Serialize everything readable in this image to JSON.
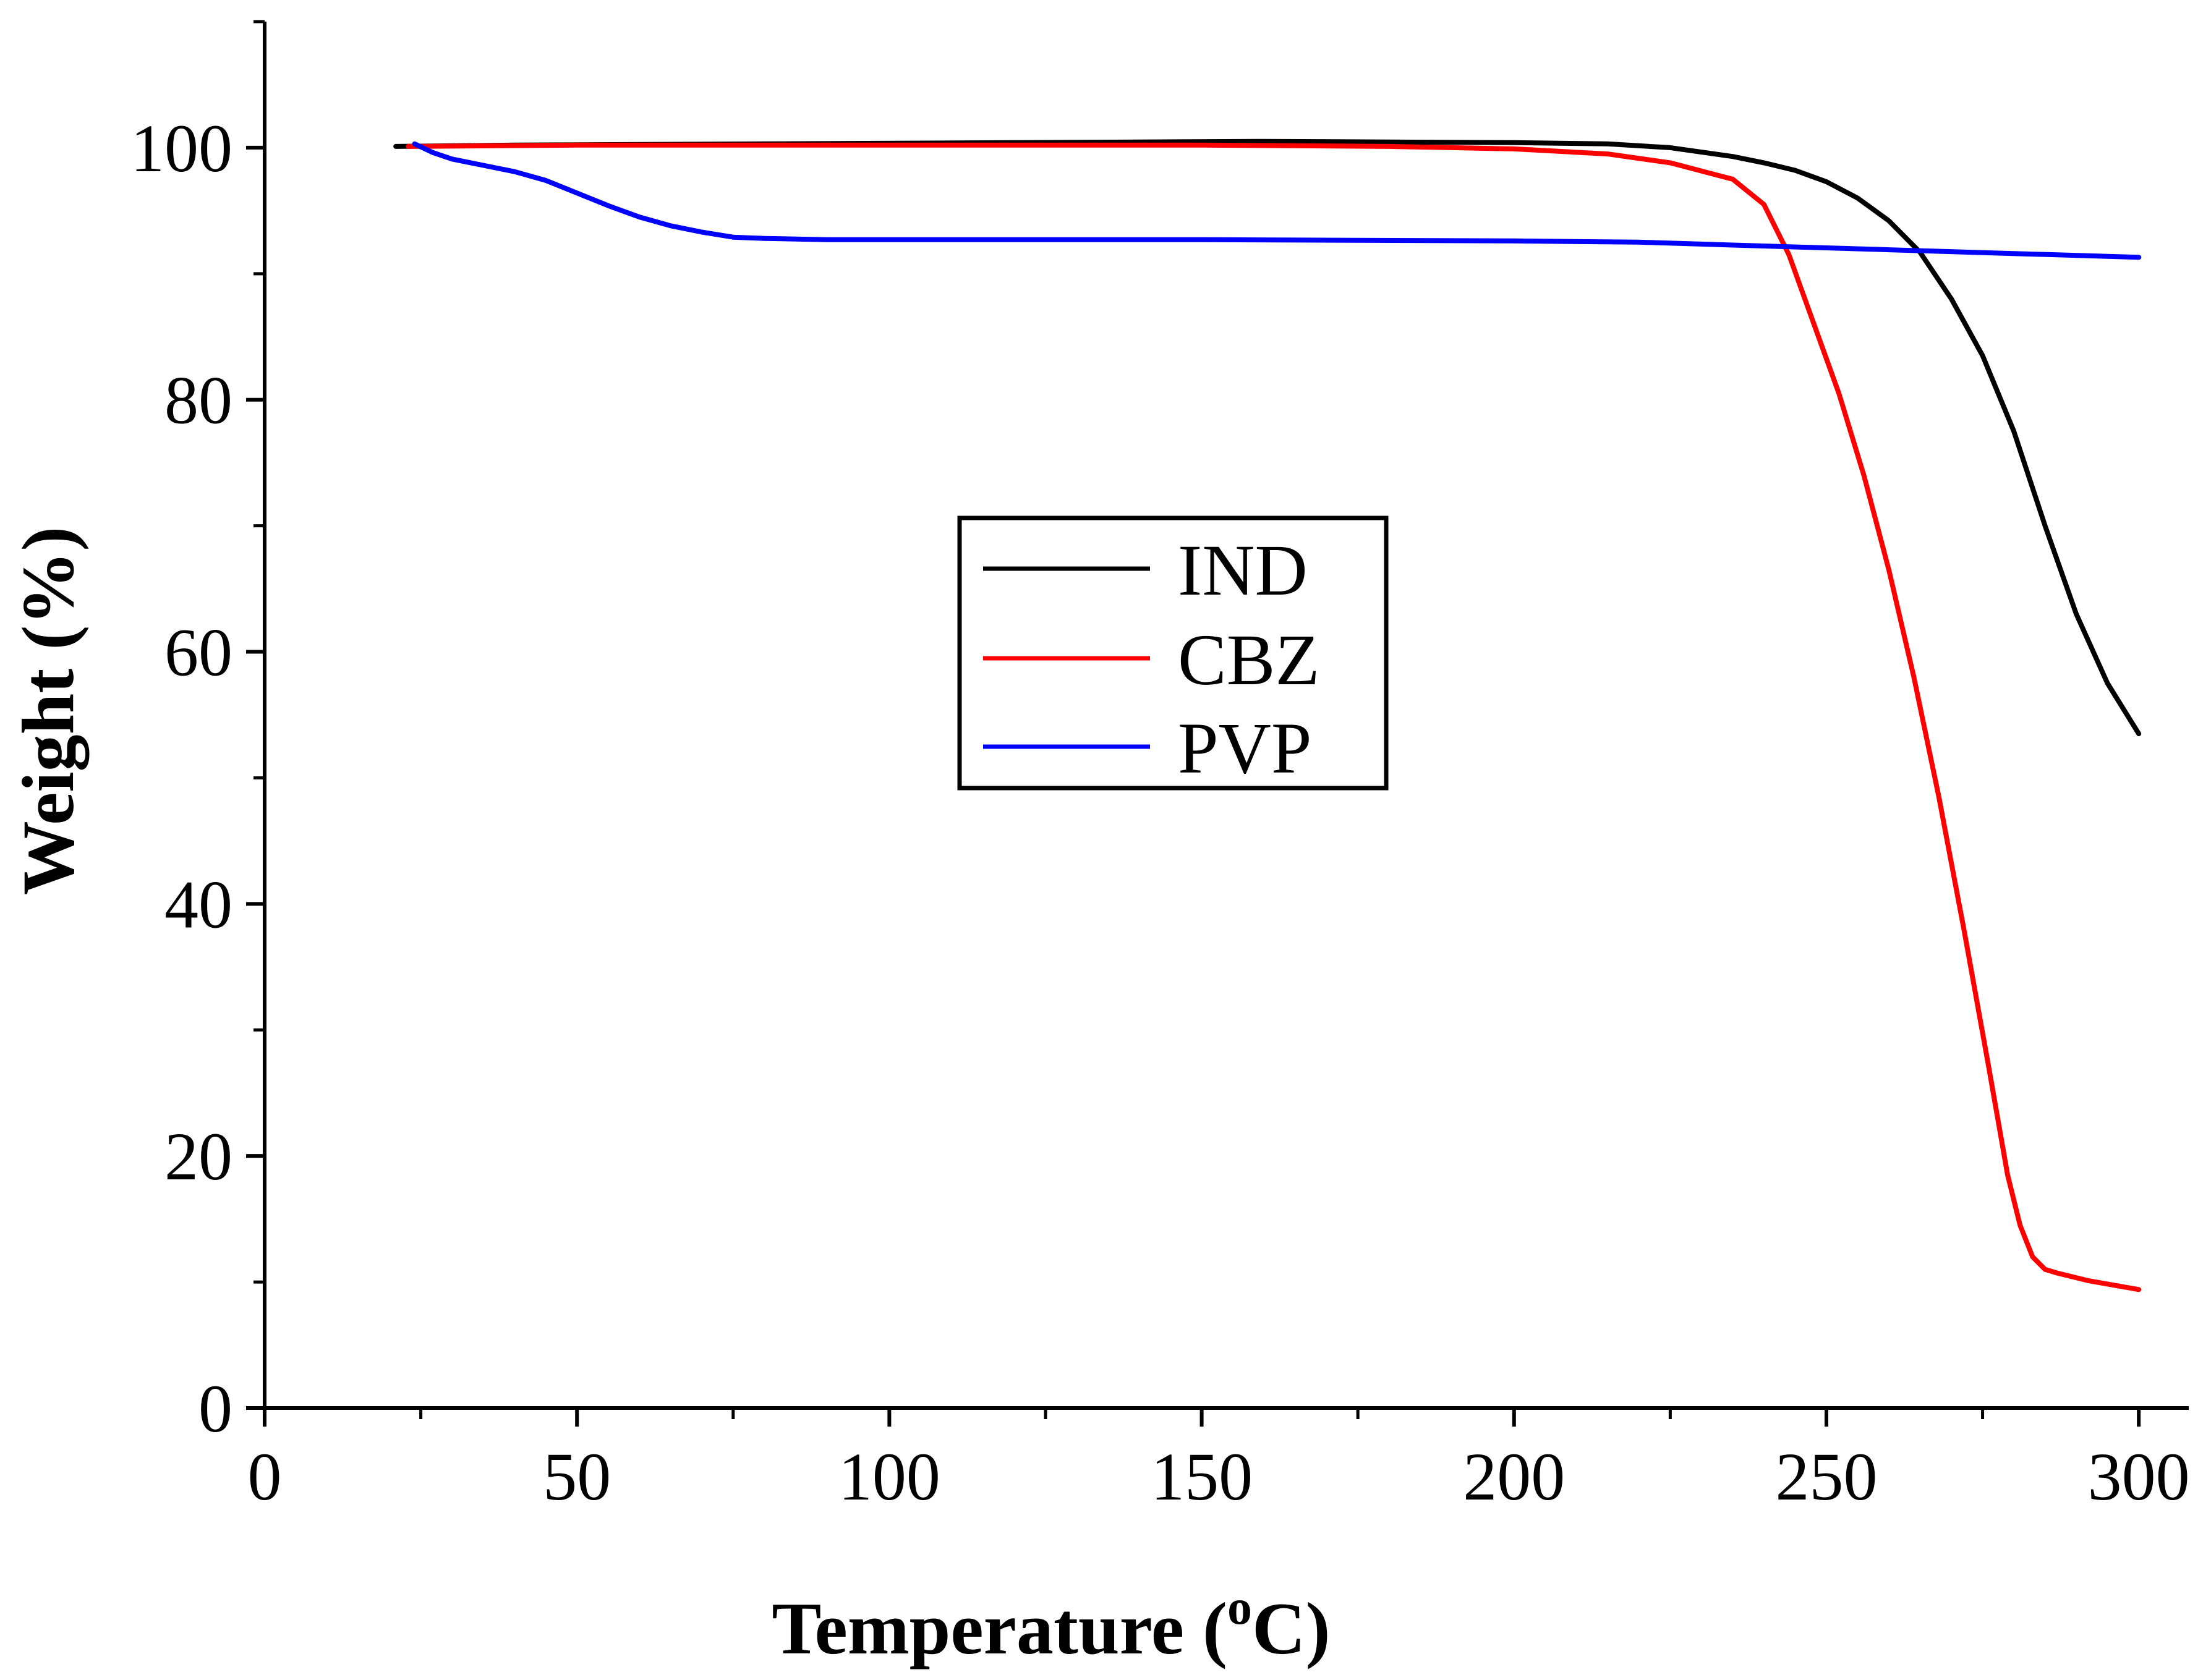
{
  "chart_data": {
    "type": "line",
    "title": "",
    "xlabel": "Temperature (",
    "xlabel_sup": "o",
    "xlabel_unit": "C)",
    "ylabel": "Weight (%)",
    "xlim": [
      0,
      308
    ],
    "ylim": [
      0,
      110
    ],
    "xticks": [
      0,
      50,
      100,
      150,
      200,
      250,
      300
    ],
    "xtick_labels": [
      "0",
      "50",
      "100",
      "150",
      "200",
      "250",
      "300"
    ],
    "yticks": [
      0,
      20,
      40,
      60,
      80,
      100
    ],
    "ytick_labels": [
      "0",
      "20",
      "40",
      "60",
      "80",
      "100"
    ],
    "x_minor_step": 25,
    "y_minor_step": 10,
    "legend_position": "center",
    "series": [
      {
        "name": "IND",
        "color": "#000000",
        "x": [
          21,
          40,
          80,
          120,
          160,
          200,
          215,
          225,
          235,
          240,
          245,
          250,
          255,
          260,
          265,
          270,
          275,
          280,
          285,
          290,
          295,
          300
        ],
        "y": [
          100.1,
          100.2,
          100.3,
          100.4,
          100.5,
          100.4,
          100.3,
          100.0,
          99.3,
          98.8,
          98.2,
          97.3,
          96.0,
          94.2,
          91.7,
          88.0,
          83.5,
          77.5,
          70.0,
          63.0,
          57.5,
          53.5
        ]
      },
      {
        "name": "CBZ",
        "color": "#ff0000",
        "x": [
          23,
          50,
          100,
          150,
          180,
          200,
          215,
          225,
          235,
          240,
          244,
          248,
          252,
          256,
          260,
          264,
          268,
          272,
          276,
          279,
          281,
          283,
          285,
          287,
          292,
          300
        ],
        "y": [
          100.1,
          100.2,
          100.2,
          100.2,
          100.1,
          99.9,
          99.5,
          98.8,
          97.5,
          95.5,
          91.5,
          86.0,
          80.5,
          74.0,
          66.5,
          58.0,
          48.5,
          38.0,
          27.0,
          18.5,
          14.5,
          12.0,
          11.0,
          10.7,
          10.1,
          9.4
        ]
      },
      {
        "name": "PVP",
        "color": "#0000ff",
        "x": [
          24,
          27,
          30,
          35,
          40,
          45,
          50,
          55,
          60,
          65,
          70,
          75,
          80,
          90,
          100,
          150,
          200,
          220,
          240,
          260,
          280,
          300
        ],
        "y": [
          100.3,
          99.6,
          99.1,
          98.6,
          98.1,
          97.4,
          96.4,
          95.4,
          94.5,
          93.8,
          93.3,
          92.9,
          92.8,
          92.7,
          92.7,
          92.7,
          92.6,
          92.5,
          92.2,
          91.9,
          91.6,
          91.3
        ]
      }
    ]
  }
}
